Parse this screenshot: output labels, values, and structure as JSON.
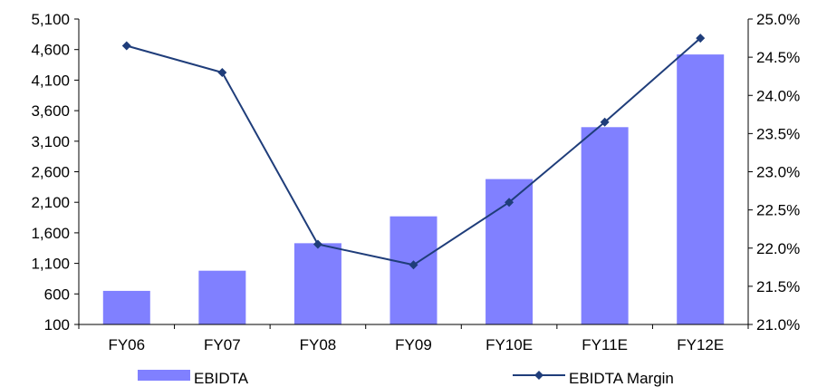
{
  "chart_data": {
    "type": "bar",
    "categories": [
      "FY06",
      "FY07",
      "FY08",
      "FY09",
      "FY10E",
      "FY11E",
      "FY12E"
    ],
    "series": [
      {
        "name": "EBIDTA",
        "type": "bar",
        "axis": "left",
        "color": "#8080ff",
        "values": [
          650,
          980,
          1430,
          1870,
          2480,
          3330,
          4520
        ]
      },
      {
        "name": "EBIDTA Margin",
        "type": "line",
        "axis": "right",
        "color": "#1f3d7a",
        "marker": "diamond",
        "values": [
          24.65,
          24.3,
          22.05,
          21.78,
          22.6,
          23.65,
          24.75
        ]
      }
    ],
    "y_left": {
      "ylim": [
        100,
        5100
      ],
      "ticks": [
        100,
        600,
        1100,
        1600,
        2100,
        2600,
        3100,
        3600,
        4100,
        4600,
        5100
      ],
      "tick_labels": [
        "100",
        "600",
        "1,100",
        "1,600",
        "2,100",
        "2,600",
        "3,100",
        "3,600",
        "4,100",
        "4,600",
        "5,100"
      ]
    },
    "y_right": {
      "ylim": [
        21.0,
        25.0
      ],
      "ticks": [
        21.0,
        21.5,
        22.0,
        22.5,
        23.0,
        23.5,
        24.0,
        24.5,
        25.0
      ],
      "tick_labels": [
        "21.0%",
        "21.5%",
        "22.0%",
        "22.5%",
        "23.0%",
        "23.5%",
        "24.0%",
        "24.5%",
        "25.0%"
      ]
    },
    "grid": false,
    "legend": {
      "position": "bottom",
      "entries": [
        "EBIDTA",
        "EBIDTA Margin"
      ]
    },
    "title": "",
    "xlabel": "",
    "ylabel": ""
  }
}
